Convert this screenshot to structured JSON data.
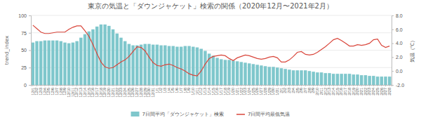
{
  "chart_data": {
    "type": "bar",
    "title": "東京の気温と「ダウンジャケット」検索の関係（2020年12月〜2021年2月）",
    "y_label": "trend_index",
    "y2_label": "気温（℃）",
    "categories": [
      "12/1",
      "12/2",
      "12/3",
      "12/4",
      "12/5",
      "12/6",
      "12/7",
      "12/8",
      "12/9",
      "12/10",
      "12/11",
      "12/12",
      "12/13",
      "12/14",
      "12/15",
      "12/16",
      "12/17",
      "12/18",
      "12/19",
      "12/20",
      "12/21",
      "12/22",
      "12/23",
      "12/24",
      "12/25",
      "12/26",
      "12/27",
      "12/28",
      "12/29",
      "12/30",
      "12/31",
      "1/1",
      "1/2",
      "1/3",
      "1/4",
      "1/5",
      "1/6",
      "1/7",
      "1/8",
      "1/9",
      "1/10",
      "1/11",
      "1/12",
      "1/13",
      "1/14",
      "1/15",
      "1/16",
      "1/17",
      "1/18",
      "1/19",
      "1/20",
      "1/21",
      "1/22",
      "1/23",
      "1/24",
      "1/25",
      "1/26",
      "1/27",
      "1/28",
      "1/29",
      "1/30",
      "1/31",
      "2/1",
      "2/2",
      "2/3",
      "2/4",
      "2/5",
      "2/6",
      "2/7",
      "2/8",
      "2/9",
      "2/10",
      "2/11",
      "2/12",
      "2/13",
      "2/14",
      "2/15",
      "2/16",
      "2/17",
      "2/18",
      "2/19",
      "2/20",
      "2/21",
      "2/22",
      "2/23",
      "2/24",
      "2/25",
      "2/26",
      "2/27",
      "2/28"
    ],
    "series": [
      {
        "name": "7日間平均「ダウンジャケット」検索",
        "type": "bar",
        "color": "#7fc7cc",
        "values": [
          61,
          63,
          63,
          64,
          64,
          64,
          64,
          63,
          61,
          60,
          61,
          63,
          68,
          73,
          77,
          80,
          84,
          87,
          87,
          85,
          80,
          74,
          68,
          63,
          59,
          57,
          57,
          58,
          59,
          59,
          58,
          58,
          57,
          57,
          56,
          56,
          55,
          55,
          56,
          56,
          55,
          54,
          52,
          49,
          45,
          42,
          39,
          37,
          36,
          36,
          35,
          34,
          33,
          32,
          31,
          30,
          29,
          28,
          27,
          26,
          26,
          25,
          24,
          23,
          22,
          21,
          21,
          21,
          21,
          20,
          19,
          18,
          18,
          17,
          17,
          16,
          16,
          16,
          16,
          16,
          15,
          15,
          14,
          14,
          13,
          13,
          12,
          12,
          12,
          12
        ]
      },
      {
        "name": "7日間平均最低気温",
        "type": "line",
        "axis": "y2",
        "color": "#d9463b",
        "values": [
          6.6,
          6.1,
          5.6,
          5.4,
          5.4,
          5.5,
          5.6,
          5.6,
          5.6,
          6.0,
          6.3,
          6.5,
          6.5,
          5.8,
          5.0,
          3.8,
          2.5,
          1.3,
          0.6,
          0.4,
          0.5,
          0.9,
          1.3,
          1.6,
          2.1,
          2.8,
          3.5,
          3.4,
          2.9,
          2.0,
          1.2,
          0.8,
          0.7,
          0.9,
          1.0,
          0.8,
          0.5,
          0.3,
          0.0,
          -0.4,
          -0.6,
          -0.7,
          0.0,
          1.0,
          1.8,
          2.1,
          2.2,
          2.3,
          2.2,
          1.8,
          1.5,
          1.9,
          2.1,
          2.3,
          2.2,
          2.0,
          1.8,
          1.7,
          1.8,
          2.0,
          2.1,
          1.9,
          1.3,
          1.3,
          1.6,
          2.1,
          2.7,
          2.8,
          2.4,
          2.3,
          2.4,
          2.7,
          3.1,
          3.5,
          4.0,
          4.5,
          4.7,
          4.4,
          4.0,
          3.6,
          3.6,
          3.8,
          3.7,
          3.8,
          4.0,
          4.5,
          4.6,
          3.7,
          3.4,
          3.6
        ]
      }
    ],
    "ylim": [
      0,
      100
    ],
    "yticks": [
      0,
      25,
      50,
      75,
      100
    ],
    "y2lim": [
      -2,
      8
    ],
    "y2ticks": [
      {
        "value": -2,
        "label": "-2.0"
      },
      {
        "value": 0,
        "label": "0.0"
      },
      {
        "value": 2,
        "label": "2.0"
      },
      {
        "value": 4,
        "label": "4.0"
      },
      {
        "value": 6,
        "label": "6.0"
      },
      {
        "value": 8,
        "label": "8.0"
      }
    ],
    "grid": true,
    "legend": "bottom"
  }
}
